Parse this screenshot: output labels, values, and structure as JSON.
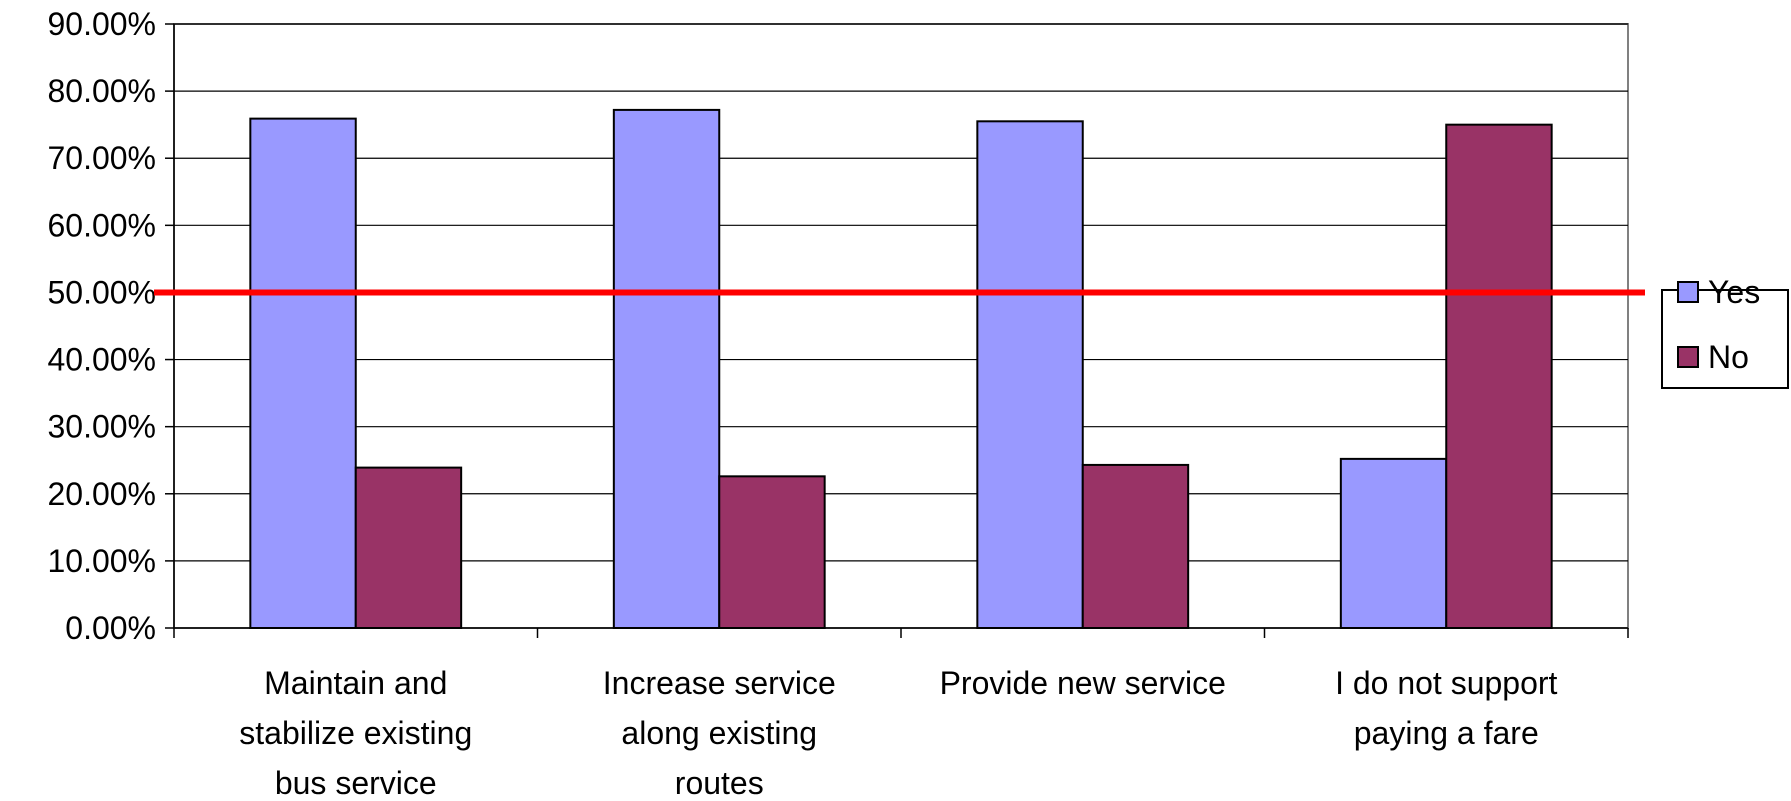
{
  "chart_data": {
    "type": "bar",
    "categories": [
      [
        "Maintain and",
        "stabilize existing",
        "bus service"
      ],
      [
        "Increase service",
        "along existing",
        "routes"
      ],
      [
        "Provide new service"
      ],
      [
        "I do not support",
        "paying a fare"
      ]
    ],
    "series": [
      {
        "name": "Yes",
        "color": "#9999ff",
        "values": [
          75.9,
          77.2,
          75.5,
          25.2
        ]
      },
      {
        "name": "No",
        "color": "#993366",
        "values": [
          23.9,
          22.6,
          24.3,
          75.0
        ]
      }
    ],
    "yticks": [
      "0.00%",
      "10.00%",
      "20.00%",
      "30.00%",
      "40.00%",
      "50.00%",
      "60.00%",
      "70.00%",
      "80.00%",
      "90.00%"
    ],
    "ylim": [
      0,
      90
    ],
    "reference_line": {
      "value": 50,
      "color": "#ff0000"
    },
    "grid": true,
    "legend_position": "right",
    "title": "",
    "xlabel": "",
    "ylabel": ""
  }
}
